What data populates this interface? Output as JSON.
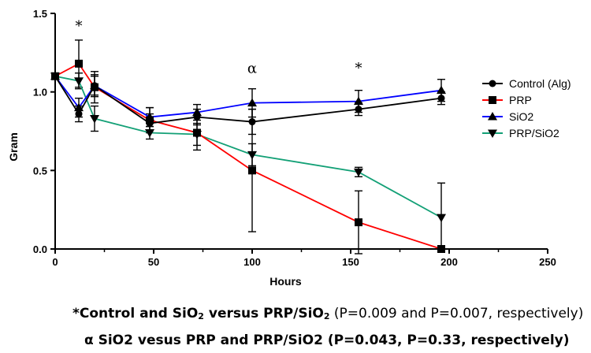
{
  "chart_data": {
    "type": "line",
    "title": "",
    "xlabel": "Hours",
    "ylabel": "Gram",
    "xlim": [
      0,
      250
    ],
    "ylim": [
      0,
      1.5
    ],
    "xticks": [
      "0",
      "50",
      "100",
      "150",
      "200",
      "250"
    ],
    "yticks": [
      "0.0",
      "0.5",
      "1.0",
      "1.5"
    ],
    "grid": false,
    "legend_position": "right",
    "series": [
      {
        "name": "Control (Alg)",
        "marker": "circle",
        "color": "#000000",
        "x": [
          0,
          12,
          20,
          48,
          72,
          100,
          154,
          196
        ],
        "y": [
          1.1,
          0.86,
          1.04,
          0.8,
          0.84,
          0.81,
          0.89,
          0.96
        ],
        "err": [
          0,
          0.05,
          0.06,
          0.06,
          0.05,
          0.08,
          0.04,
          0.04
        ]
      },
      {
        "name": "PRP",
        "marker": "square",
        "color": "#ff0000",
        "x": [
          0,
          12,
          20,
          48,
          72,
          100,
          154,
          196
        ],
        "y": [
          1.1,
          1.18,
          1.03,
          0.82,
          0.74,
          0.5,
          0.17,
          0.0
        ],
        "err": [
          0,
          0.15,
          0.1,
          0.08,
          0.11,
          0.39,
          0.2,
          0
        ]
      },
      {
        "name": "SiO2",
        "marker": "triangle-up",
        "color": "#0000ff",
        "x": [
          0,
          12,
          20,
          48,
          72,
          100,
          154,
          196
        ],
        "y": [
          1.1,
          0.9,
          1.04,
          0.84,
          0.87,
          0.93,
          0.94,
          1.01
        ],
        "err": [
          0,
          0.06,
          0.07,
          0.06,
          0.05,
          0.09,
          0.07,
          0.07
        ]
      },
      {
        "name": "PRP/SiO2",
        "marker": "triangle-down",
        "color": "#13a076",
        "x": [
          0,
          12,
          20,
          48,
          72,
          100,
          154,
          196
        ],
        "y": [
          1.1,
          1.07,
          0.83,
          0.74,
          0.73,
          0.6,
          0.49,
          0.2
        ],
        "err": [
          0,
          0.05,
          0.08,
          0.04,
          0.07,
          0.07,
          0.03,
          0.22
        ]
      }
    ],
    "annotations": [
      {
        "text": "*",
        "x": 12,
        "y": 1.39
      },
      {
        "text": "α",
        "x": 100,
        "y": 1.12
      },
      {
        "text": "*",
        "x": 154,
        "y": 1.12
      }
    ]
  },
  "footnotes": {
    "line1_lead": "*Control and SiO",
    "line1_sub": "2",
    "line1_mid": " versus PRP/SiO",
    "line1_sub2": "2",
    "line1_tail": " (P=0.009 and P=0.007, respectively)",
    "line2_lead": "α SiO2 vesus PRP and PRP/SiO2 (P=0.043, P=0.33, respectively)"
  }
}
